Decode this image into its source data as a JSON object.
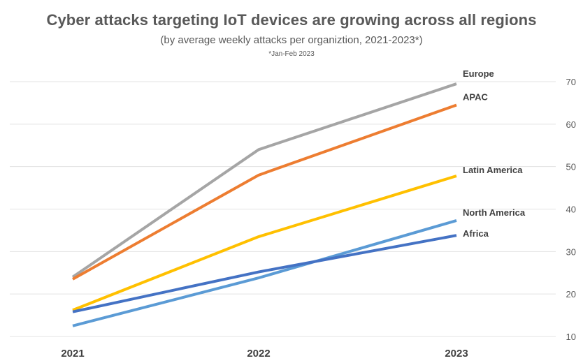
{
  "chart_data": {
    "type": "line",
    "title": "Cyber attacks targeting IoT devices are growing across all regions",
    "subtitle": "(by average weekly attacks per organiztion, 2021-2023*)",
    "note": "*Jan-Feb 2023",
    "categories": [
      "2021",
      "2022",
      "2023"
    ],
    "ylim": [
      10,
      70
    ],
    "yticks": [
      10,
      20,
      30,
      40,
      50,
      60,
      70
    ],
    "grid": true,
    "yaxis_position": "right",
    "xlabel": "",
    "ylabel": "",
    "series": [
      {
        "name": "Europe",
        "color": "#a5a5a5",
        "values": [
          24,
          54,
          69.5
        ]
      },
      {
        "name": "APAC",
        "color": "#ed7d31",
        "values": [
          23.5,
          48,
          64.5
        ]
      },
      {
        "name": "Latin America",
        "color": "#ffc000",
        "values": [
          16.2,
          33.5,
          47.8
        ]
      },
      {
        "name": "North America",
        "color": "#5b9bd5",
        "values": [
          12.5,
          23.8,
          37.3
        ]
      },
      {
        "name": "Africa",
        "color": "#4472c4",
        "values": [
          15.8,
          25.2,
          33.8
        ]
      }
    ]
  }
}
